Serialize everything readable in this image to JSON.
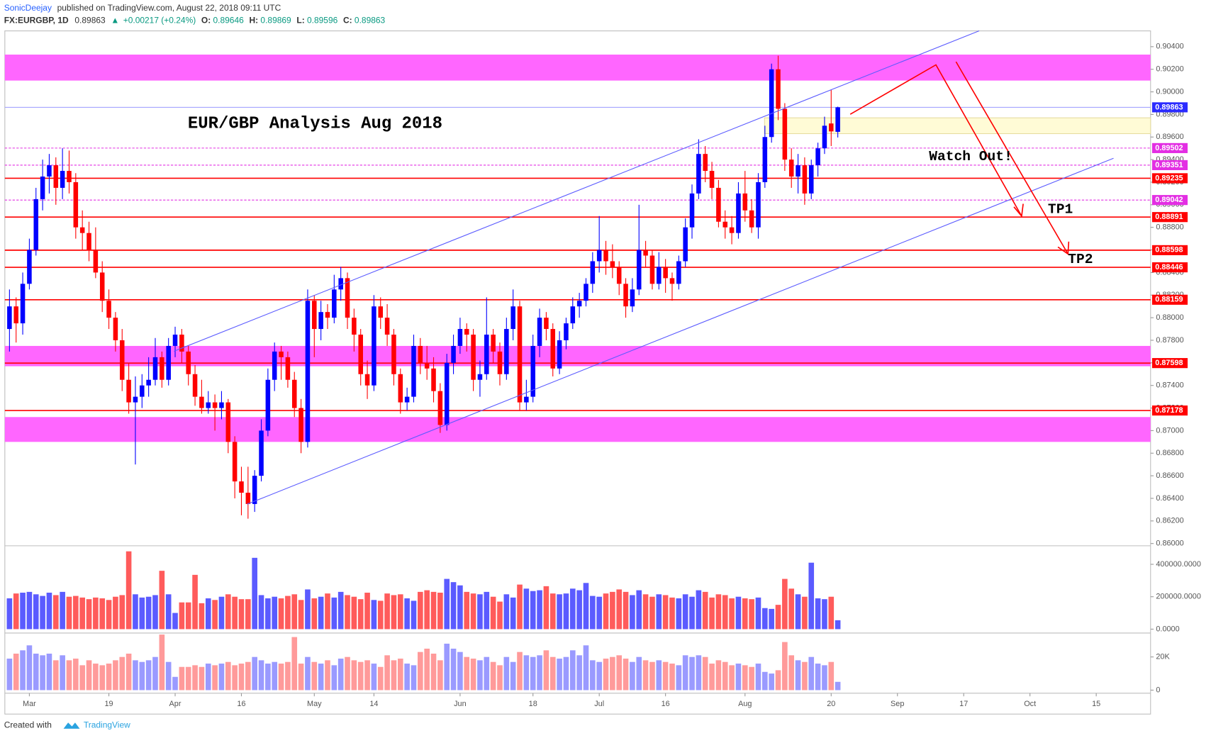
{
  "header": {
    "author": "SonicDeejay",
    "published": "published on TradingView.com, August 22, 2018 09:11 UTC",
    "symbol": "FX:EURGBP, 1D",
    "last": "0.89863",
    "arrow": "▲",
    "change": "+0.00217 (+0.24%)",
    "o_label": "O:",
    "o": "0.89646",
    "h_label": "H:",
    "h": "0.89869",
    "l_label": "L:",
    "l": "0.89596",
    "c_label": "C:",
    "c": "0.89863"
  },
  "footer": {
    "created": "Created with",
    "brand": "TradingView"
  },
  "chart_data": {
    "type": "candlestick",
    "title": "EUR/GBP Analysis Aug 2018",
    "annotations": [
      "Watch Out!",
      "TP1",
      "TP2"
    ],
    "up_color": "#0000ff",
    "down_color": "#ff0000",
    "grid": false,
    "xlim": [
      -0.7,
      172.2
    ],
    "xticks": [
      {
        "value": 3,
        "label": "Mar"
      },
      {
        "value": 15,
        "label": "19"
      },
      {
        "value": 25,
        "label": "Apr"
      },
      {
        "value": 35,
        "label": "16"
      },
      {
        "value": 46,
        "label": "May"
      },
      {
        "value": 55,
        "label": "14"
      },
      {
        "value": 68,
        "label": "Jun"
      },
      {
        "value": 79,
        "label": "18"
      },
      {
        "value": 89,
        "label": "Jul"
      },
      {
        "value": 99,
        "label": "16"
      },
      {
        "value": 111,
        "label": "Aug"
      },
      {
        "value": 124,
        "label": "20"
      },
      {
        "value": 134,
        "label": "Sep"
      },
      {
        "value": 144,
        "label": "17"
      },
      {
        "value": 154,
        "label": "Oct"
      },
      {
        "value": 164,
        "label": "15"
      }
    ],
    "ylim": [
      0.8598,
      0.9054
    ],
    "yticks": [
      {
        "value": 0.86,
        "label": "0.86000"
      },
      {
        "value": 0.862,
        "label": "0.86200"
      },
      {
        "value": 0.864,
        "label": "0.86400"
      },
      {
        "value": 0.866,
        "label": "0.86600"
      },
      {
        "value": 0.868,
        "label": "0.86800"
      },
      {
        "value": 0.87,
        "label": "0.87000"
      },
      {
        "value": 0.872,
        "label": "0.87200"
      },
      {
        "value": 0.874,
        "label": "0.87400"
      },
      {
        "value": 0.876,
        "label": "0.87600"
      },
      {
        "value": 0.878,
        "label": "0.87800"
      },
      {
        "value": 0.88,
        "label": "0.88000"
      },
      {
        "value": 0.882,
        "label": "0.88200"
      },
      {
        "value": 0.884,
        "label": "0.88400"
      },
      {
        "value": 0.886,
        "label": "0.88600"
      },
      {
        "value": 0.888,
        "label": "0.88800"
      },
      {
        "value": 0.89,
        "label": "0.89000"
      },
      {
        "value": 0.892,
        "label": "0.89200"
      },
      {
        "value": 0.894,
        "label": "0.89400"
      },
      {
        "value": 0.896,
        "label": "0.89600"
      },
      {
        "value": 0.898,
        "label": "0.89800"
      },
      {
        "value": 0.9,
        "label": "0.90000"
      },
      {
        "value": 0.902,
        "label": "0.90200"
      },
      {
        "value": 0.904,
        "label": "0.90400"
      }
    ],
    "zones": [
      {
        "from": 0.901,
        "to": 0.9033,
        "color": "#ff66ff"
      },
      {
        "from": 0.8757,
        "to": 0.8775,
        "color": "#ff66ff"
      },
      {
        "from": 0.869,
        "to": 0.8712,
        "color": "#ff66ff"
      },
      {
        "from": 0.8963,
        "to": 0.8977,
        "color": "#fffbd6"
      }
    ],
    "levels": [
      {
        "value": 0.89502,
        "color": "#e32ee3",
        "style": "dashed"
      },
      {
        "value": 0.89351,
        "color": "#e32ee3",
        "style": "dashed"
      },
      {
        "value": 0.89235,
        "color": "#ff0000",
        "style": "solid"
      },
      {
        "value": 0.89042,
        "color": "#e32ee3",
        "style": "dashed"
      },
      {
        "value": 0.88891,
        "color": "#ff0000",
        "style": "solid"
      },
      {
        "value": 0.88598,
        "color": "#ff0000",
        "style": "solid"
      },
      {
        "value": 0.88446,
        "color": "#ff0000",
        "style": "solid"
      },
      {
        "value": 0.88159,
        "color": "#ff0000",
        "style": "solid"
      },
      {
        "value": 0.87598,
        "color": "#ff0000",
        "style": "solid"
      },
      {
        "value": 0.87178,
        "color": "#ff0000",
        "style": "solid"
      }
    ],
    "current": {
      "value": 0.89863,
      "color": "#2b2bff"
    },
    "candles": [
      [
        0.879,
        0.8825,
        0.877,
        0.881
      ],
      [
        0.881,
        0.8818,
        0.8778,
        0.8795
      ],
      [
        0.8795,
        0.884,
        0.8785,
        0.883
      ],
      [
        0.883,
        0.887,
        0.8825,
        0.886
      ],
      [
        0.886,
        0.8915,
        0.8855,
        0.8905
      ],
      [
        0.8905,
        0.894,
        0.8895,
        0.8925
      ],
      [
        0.8925,
        0.8945,
        0.891,
        0.8935
      ],
      [
        0.8935,
        0.8942,
        0.89,
        0.8915
      ],
      [
        0.8915,
        0.895,
        0.8905,
        0.893
      ],
      [
        0.893,
        0.8948,
        0.891,
        0.892
      ],
      [
        0.892,
        0.8928,
        0.887,
        0.888
      ],
      [
        0.888,
        0.8895,
        0.886,
        0.8875
      ],
      [
        0.8875,
        0.8885,
        0.885,
        0.886
      ],
      [
        0.886,
        0.888,
        0.8835,
        0.884
      ],
      [
        0.884,
        0.885,
        0.8805,
        0.8815
      ],
      [
        0.8815,
        0.8825,
        0.879,
        0.88
      ],
      [
        0.88,
        0.8805,
        0.877,
        0.878
      ],
      [
        0.878,
        0.879,
        0.8735,
        0.8745
      ],
      [
        0.8745,
        0.876,
        0.8715,
        0.8725
      ],
      [
        0.8725,
        0.8748,
        0.867,
        0.873
      ],
      [
        0.873,
        0.875,
        0.872,
        0.874
      ],
      [
        0.874,
        0.8765,
        0.873,
        0.8745
      ],
      [
        0.8745,
        0.8782,
        0.874,
        0.8765
      ],
      [
        0.8765,
        0.877,
        0.8738,
        0.8745
      ],
      [
        0.8745,
        0.8782,
        0.874,
        0.8775
      ],
      [
        0.8775,
        0.8792,
        0.8765,
        0.8785
      ],
      [
        0.8785,
        0.879,
        0.876,
        0.877
      ],
      [
        0.877,
        0.8775,
        0.874,
        0.875
      ],
      [
        0.875,
        0.8758,
        0.8722,
        0.873
      ],
      [
        0.873,
        0.8745,
        0.8715,
        0.872
      ],
      [
        0.872,
        0.8735,
        0.8715,
        0.8725
      ],
      [
        0.8725,
        0.8732,
        0.87,
        0.872
      ],
      [
        0.872,
        0.8735,
        0.871,
        0.8725
      ],
      [
        0.8725,
        0.8728,
        0.868,
        0.869
      ],
      [
        0.869,
        0.8695,
        0.864,
        0.8655
      ],
      [
        0.8655,
        0.8668,
        0.8625,
        0.8645
      ],
      [
        0.8645,
        0.8668,
        0.8622,
        0.8635
      ],
      [
        0.8635,
        0.8665,
        0.8628,
        0.866
      ],
      [
        0.866,
        0.871,
        0.8655,
        0.87
      ],
      [
        0.87,
        0.8755,
        0.8695,
        0.8745
      ],
      [
        0.8745,
        0.8778,
        0.8735,
        0.877
      ],
      [
        0.877,
        0.8775,
        0.8745,
        0.8765
      ],
      [
        0.8765,
        0.877,
        0.8738,
        0.8745
      ],
      [
        0.8745,
        0.8752,
        0.8712,
        0.872
      ],
      [
        0.872,
        0.8728,
        0.868,
        0.869
      ],
      [
        0.869,
        0.8825,
        0.8685,
        0.8815
      ],
      [
        0.8815,
        0.882,
        0.8765,
        0.879
      ],
      [
        0.879,
        0.8815,
        0.878,
        0.8805
      ],
      [
        0.8805,
        0.8812,
        0.879,
        0.88
      ],
      [
        0.88,
        0.8838,
        0.8795,
        0.8825
      ],
      [
        0.8825,
        0.8845,
        0.8815,
        0.8835
      ],
      [
        0.8835,
        0.884,
        0.879,
        0.88
      ],
      [
        0.88,
        0.8808,
        0.877,
        0.8785
      ],
      [
        0.8785,
        0.879,
        0.874,
        0.875
      ],
      [
        0.875,
        0.8762,
        0.8728,
        0.874
      ],
      [
        0.874,
        0.882,
        0.8735,
        0.881
      ],
      [
        0.881,
        0.8818,
        0.879,
        0.88
      ],
      [
        0.88,
        0.8812,
        0.8775,
        0.8785
      ],
      [
        0.8785,
        0.879,
        0.874,
        0.875
      ],
      [
        0.875,
        0.8755,
        0.8715,
        0.8725
      ],
      [
        0.8725,
        0.8738,
        0.8718,
        0.873
      ],
      [
        0.873,
        0.8785,
        0.8725,
        0.8775
      ],
      [
        0.8775,
        0.8782,
        0.875,
        0.876
      ],
      [
        0.876,
        0.8775,
        0.8745,
        0.8755
      ],
      [
        0.8755,
        0.8765,
        0.8725,
        0.8735
      ],
      [
        0.8735,
        0.8742,
        0.8698,
        0.8705
      ],
      [
        0.8705,
        0.8768,
        0.87,
        0.876
      ],
      [
        0.876,
        0.8785,
        0.875,
        0.8775
      ],
      [
        0.8775,
        0.88,
        0.8768,
        0.879
      ],
      [
        0.879,
        0.8795,
        0.877,
        0.8785
      ],
      [
        0.8785,
        0.879,
        0.8735,
        0.8745
      ],
      [
        0.8745,
        0.8762,
        0.873,
        0.875
      ],
      [
        0.875,
        0.8818,
        0.8745,
        0.8785
      ],
      [
        0.8785,
        0.879,
        0.876,
        0.877
      ],
      [
        0.877,
        0.8778,
        0.874,
        0.875
      ],
      [
        0.875,
        0.88,
        0.8745,
        0.879
      ],
      [
        0.879,
        0.8825,
        0.878,
        0.881
      ],
      [
        0.881,
        0.8815,
        0.8718,
        0.8725
      ],
      [
        0.8725,
        0.8745,
        0.8718,
        0.873
      ],
      [
        0.873,
        0.8785,
        0.8725,
        0.8775
      ],
      [
        0.8775,
        0.8808,
        0.8765,
        0.88
      ],
      [
        0.88,
        0.8805,
        0.878,
        0.879
      ],
      [
        0.879,
        0.8795,
        0.8748,
        0.8755
      ],
      [
        0.8755,
        0.8788,
        0.875,
        0.878
      ],
      [
        0.878,
        0.88,
        0.8772,
        0.8795
      ],
      [
        0.8795,
        0.8818,
        0.879,
        0.881
      ],
      [
        0.881,
        0.8822,
        0.88,
        0.8815
      ],
      [
        0.8815,
        0.8835,
        0.881,
        0.883
      ],
      [
        0.883,
        0.8858,
        0.8822,
        0.885
      ],
      [
        0.885,
        0.889,
        0.884,
        0.886
      ],
      [
        0.886,
        0.8868,
        0.8838,
        0.885
      ],
      [
        0.885,
        0.8865,
        0.8835,
        0.8845
      ],
      [
        0.8845,
        0.885,
        0.882,
        0.883
      ],
      [
        0.883,
        0.8835,
        0.88,
        0.881
      ],
      [
        0.881,
        0.8835,
        0.8805,
        0.8825
      ],
      [
        0.8825,
        0.89,
        0.882,
        0.886
      ],
      [
        0.886,
        0.8868,
        0.8845,
        0.8855
      ],
      [
        0.8855,
        0.886,
        0.8825,
        0.883
      ],
      [
        0.883,
        0.8858,
        0.8825,
        0.8845
      ],
      [
        0.8845,
        0.8852,
        0.8822,
        0.8835
      ],
      [
        0.8835,
        0.884,
        0.8815,
        0.883
      ],
      [
        0.883,
        0.8855,
        0.8825,
        0.885
      ],
      [
        0.885,
        0.8888,
        0.8845,
        0.888
      ],
      [
        0.888,
        0.8918,
        0.887,
        0.891
      ],
      [
        0.891,
        0.8958,
        0.8905,
        0.8945
      ],
      [
        0.8945,
        0.8952,
        0.892,
        0.893
      ],
      [
        0.893,
        0.8938,
        0.8905,
        0.8915
      ],
      [
        0.8915,
        0.8922,
        0.888,
        0.8885
      ],
      [
        0.8885,
        0.8895,
        0.887,
        0.888
      ],
      [
        0.888,
        0.889,
        0.8865,
        0.8875
      ],
      [
        0.8875,
        0.892,
        0.887,
        0.891
      ],
      [
        0.891,
        0.893,
        0.8885,
        0.8895
      ],
      [
        0.8895,
        0.8905,
        0.8875,
        0.888
      ],
      [
        0.888,
        0.8928,
        0.887,
        0.892
      ],
      [
        0.892,
        0.897,
        0.8915,
        0.896
      ],
      [
        0.896,
        0.9025,
        0.8955,
        0.902
      ],
      [
        0.902,
        0.9032,
        0.8975,
        0.8985
      ],
      [
        0.8985,
        0.899,
        0.893,
        0.894
      ],
      [
        0.894,
        0.895,
        0.8915,
        0.8925
      ],
      [
        0.8925,
        0.8945,
        0.891,
        0.8935
      ],
      [
        0.8935,
        0.8942,
        0.89,
        0.891
      ],
      [
        0.891,
        0.894,
        0.8905,
        0.8935
      ],
      [
        0.8935,
        0.8955,
        0.8925,
        0.895
      ],
      [
        0.895,
        0.8978,
        0.8945,
        0.897
      ],
      [
        0.8972,
        0.9002,
        0.8952,
        0.8965
      ],
      [
        0.89646,
        0.89869,
        0.89596,
        0.89863
      ]
    ],
    "volume": {
      "up_color": "#5b5bff",
      "down_color": "#ff5b5b",
      "ylim": [
        0,
        500000
      ],
      "yticks": [
        {
          "value": 0,
          "label": "0.0000"
        },
        {
          "value": 200000,
          "label": "200000.0000"
        },
        {
          "value": 400000,
          "label": "400000.0000"
        }
      ],
      "values": [
        190000,
        220000,
        225000,
        230000,
        215000,
        205000,
        225000,
        210000,
        230000,
        200000,
        205000,
        195000,
        185000,
        195000,
        190000,
        180000,
        200000,
        210000,
        480000,
        215000,
        195000,
        200000,
        210000,
        360000,
        215000,
        100000,
        165000,
        165000,
        335000,
        160000,
        190000,
        180000,
        200000,
        215000,
        200000,
        185000,
        185000,
        440000,
        210000,
        190000,
        200000,
        190000,
        205000,
        215000,
        180000,
        245000,
        190000,
        200000,
        220000,
        195000,
        230000,
        210000,
        200000,
        185000,
        225000,
        180000,
        175000,
        220000,
        210000,
        215000,
        190000,
        175000,
        230000,
        240000,
        230000,
        225000,
        310000,
        290000,
        270000,
        230000,
        220000,
        215000,
        230000,
        200000,
        170000,
        215000,
        195000,
        275000,
        250000,
        235000,
        240000,
        265000,
        220000,
        215000,
        220000,
        250000,
        240000,
        285000,
        205000,
        200000,
        220000,
        230000,
        245000,
        230000,
        210000,
        240000,
        215000,
        200000,
        215000,
        210000,
        195000,
        190000,
        215000,
        200000,
        240000,
        230000,
        195000,
        215000,
        210000,
        190000,
        200000,
        190000,
        185000,
        195000,
        130000,
        125000,
        150000,
        310000,
        250000,
        215000,
        200000,
        410000,
        190000,
        185000,
        200000,
        55000
      ]
    },
    "tick_volume": {
      "up_color": "#9a9aff",
      "down_color": "#ff9a9a",
      "ylim": [
        0,
        33500
      ],
      "yticks": [
        0,
        {
          "value": 20000,
          "label": "20K"
        }
      ],
      "values": [
        19000,
        22000,
        24000,
        27000,
        22000,
        21000,
        22000,
        18000,
        21000,
        18000,
        19000,
        15000,
        18000,
        16000,
        15000,
        16000,
        18000,
        20000,
        22000,
        18000,
        17000,
        18000,
        20000,
        35000,
        17000,
        8000,
        14000,
        14000,
        15000,
        14000,
        16000,
        15000,
        16000,
        17000,
        15000,
        16000,
        17000,
        20000,
        18000,
        16000,
        17000,
        16000,
        17000,
        32000,
        16000,
        20000,
        17000,
        16000,
        18000,
        15000,
        19000,
        20000,
        18000,
        17000,
        18000,
        16000,
        14000,
        21000,
        18000,
        19000,
        16000,
        15000,
        23000,
        25000,
        22000,
        18000,
        28000,
        25000,
        23000,
        20000,
        19000,
        18000,
        20000,
        17000,
        15000,
        20000,
        17000,
        23000,
        21000,
        20000,
        21000,
        24000,
        20000,
        19000,
        20000,
        24000,
        21000,
        27000,
        18000,
        17000,
        19000,
        20000,
        21000,
        19000,
        17000,
        20000,
        18000,
        17000,
        18000,
        17000,
        16000,
        15000,
        21000,
        20000,
        21000,
        20000,
        16000,
        18000,
        17000,
        15000,
        16000,
        15000,
        14000,
        16000,
        11000,
        10000,
        12000,
        29000,
        21000,
        18000,
        17000,
        20000,
        16000,
        15000,
        17000,
        5000
      ]
    }
  }
}
